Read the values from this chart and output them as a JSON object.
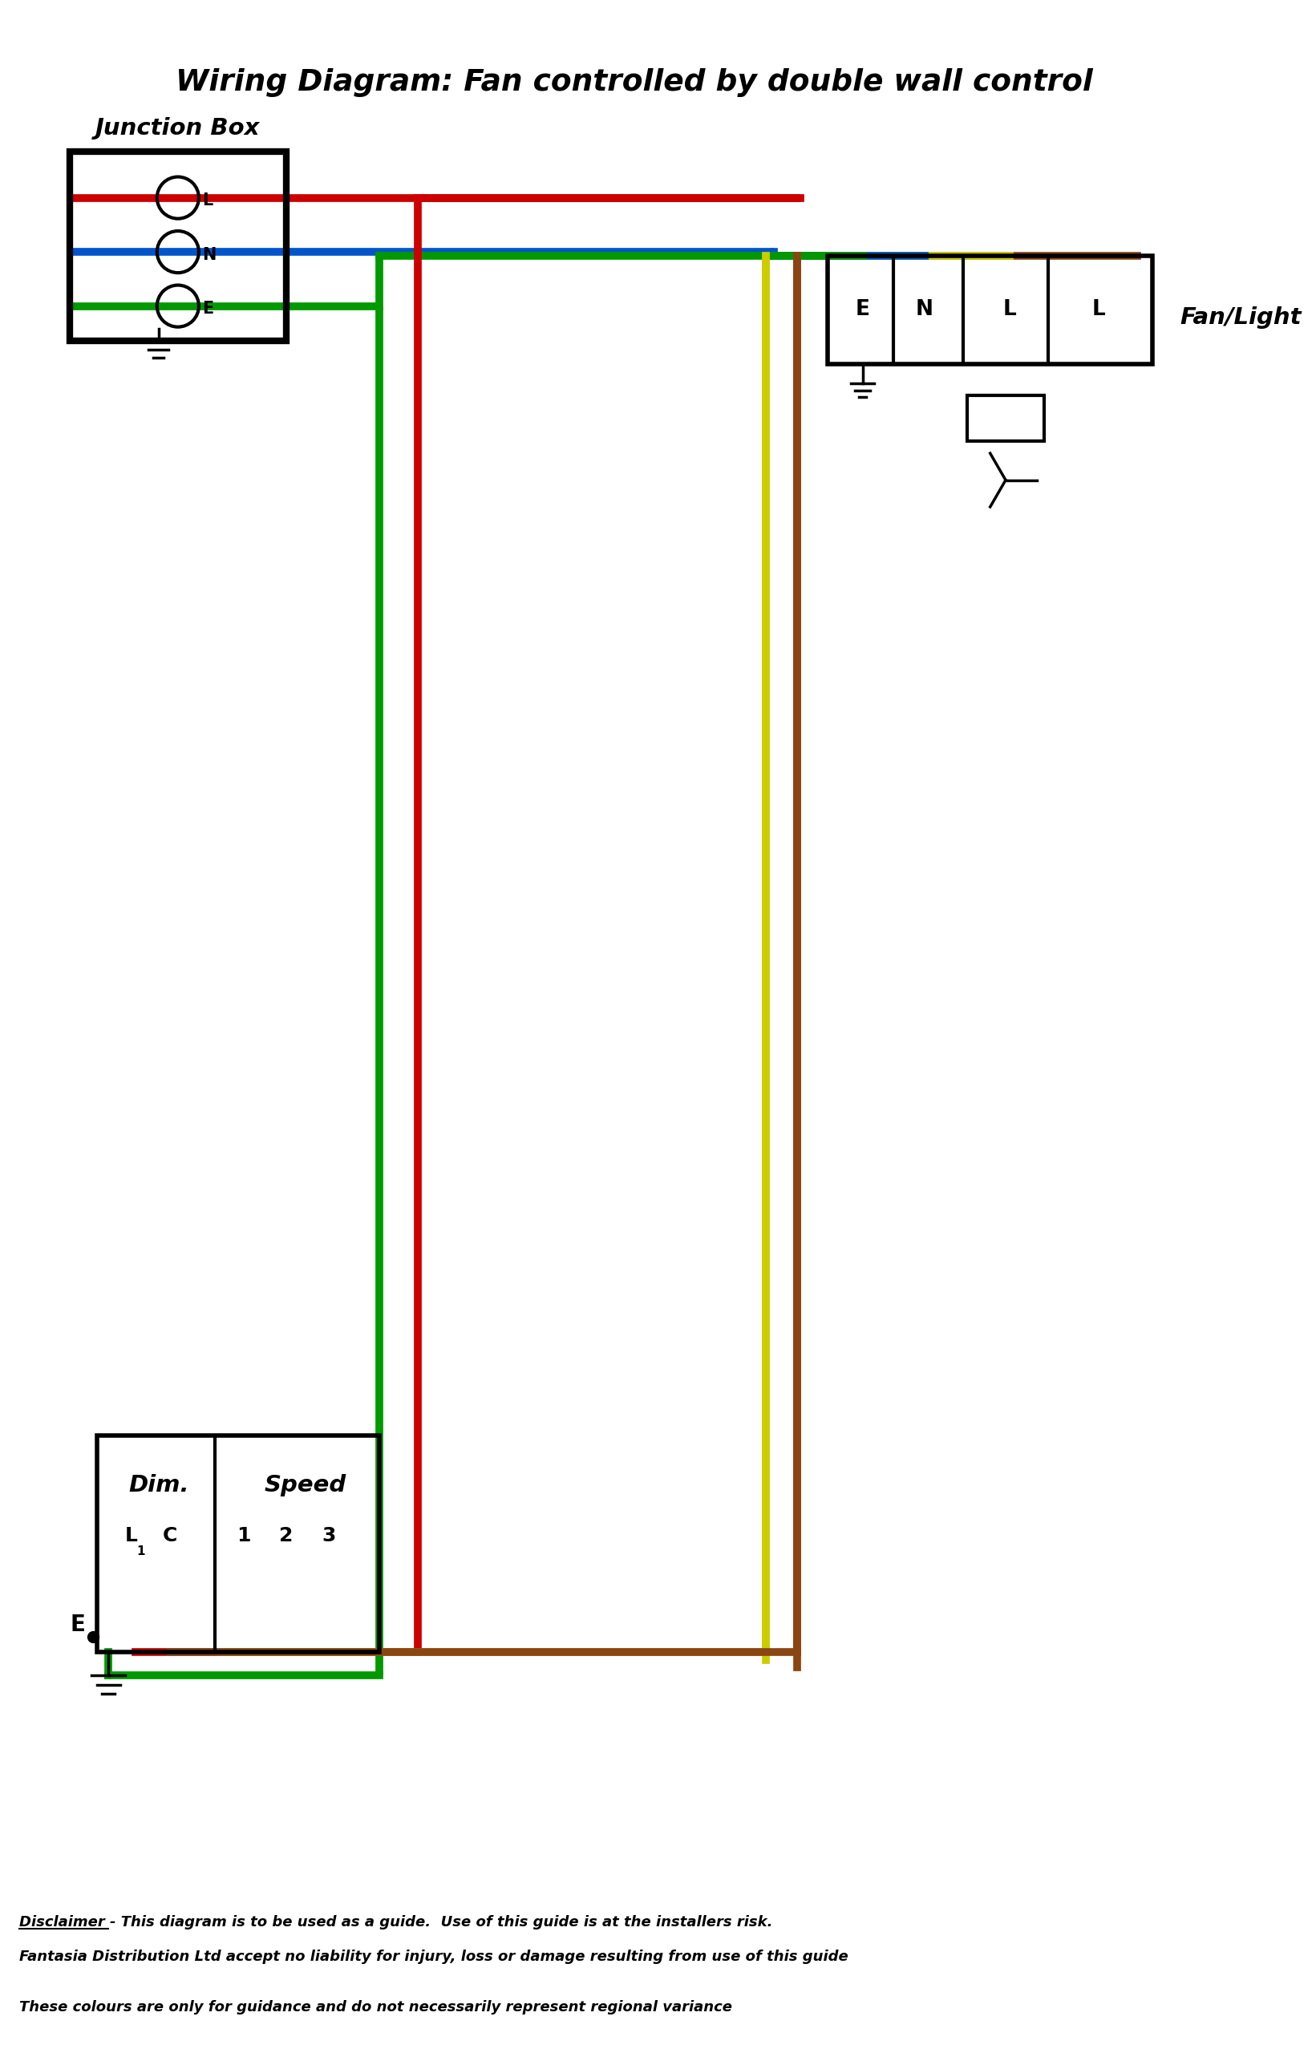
{
  "title": "Wiring Diagram: Fan controlled by double wall control",
  "bg_color": "#ffffff",
  "title_color": "#000000",
  "title_fontsize": 28,
  "wire_colors": {
    "red": "#cc0000",
    "blue": "#0055cc",
    "green": "#009900",
    "brown": "#8B4513",
    "yellow": "#cccc00",
    "black": "#000000"
  },
  "disclaimer1": "Disclaimer - This diagram is to be used as a guide.  Use of this guide is at the installers risk.",
  "disclaimer2": "Fantasia Distribution Ltd accept no liability for injury, loss or damage resulting from use of this guide",
  "disclaimer3": "These colours are only for guidance and do not necessarily represent regional variance"
}
